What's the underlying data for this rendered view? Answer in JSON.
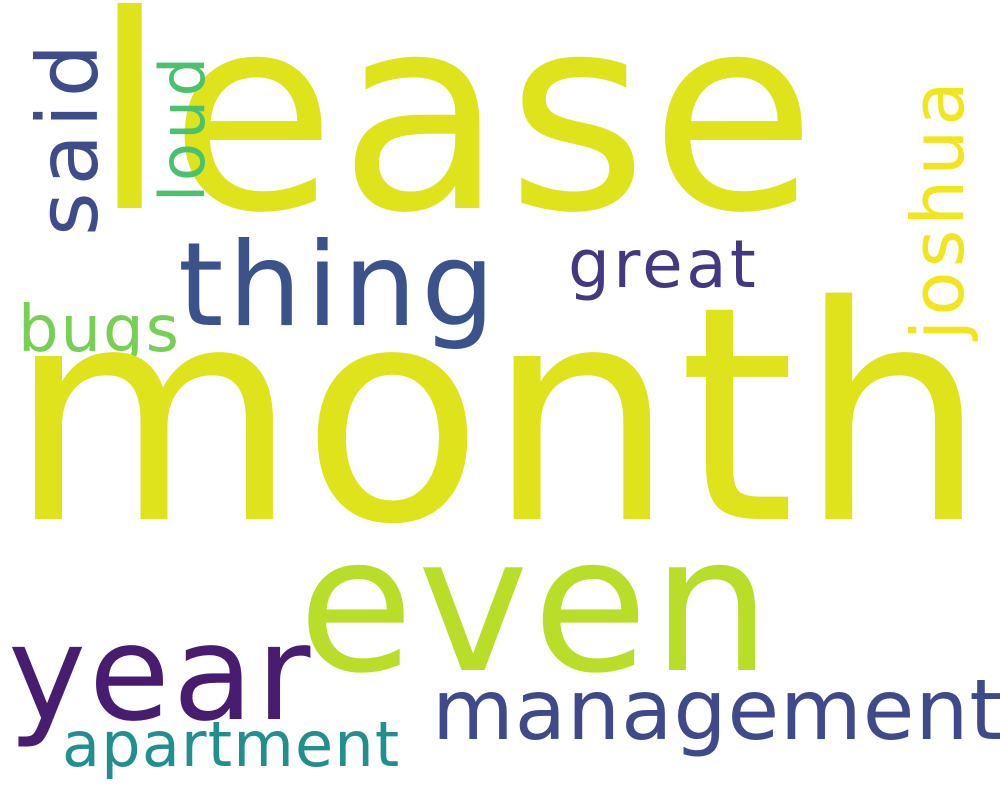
{
  "word_cloud": {
    "background": "#ffffff",
    "words": {
      "lease": {
        "text": "lease",
        "color": "#dfe31b"
      },
      "month": {
        "text": "month",
        "color": "#dfe31b"
      },
      "even": {
        "text": "even",
        "color": "#b8de29"
      },
      "thing": {
        "text": "thing",
        "color": "#3b528b"
      },
      "year": {
        "text": "year",
        "color": "#481d6f"
      },
      "management": {
        "text": "management",
        "color": "#3e4a89"
      },
      "apartment": {
        "text": "apartment",
        "color": "#218f8d"
      },
      "great": {
        "text": "great",
        "color": "#453882"
      },
      "bugs": {
        "text": "bugs",
        "color": "#75d054"
      },
      "said": {
        "text": "said",
        "color": "#3e4c8a"
      },
      "loud": {
        "text": "loud",
        "color": "#4ac16d"
      },
      "joshua": {
        "text": "joshua",
        "color": "#f1e51d"
      }
    }
  }
}
